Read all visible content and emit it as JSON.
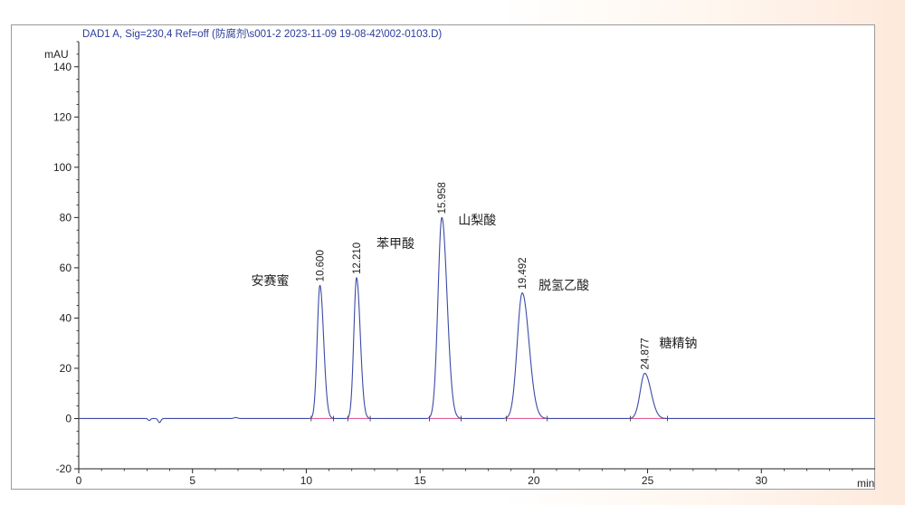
{
  "chart_data": {
    "type": "line",
    "title": "DAD1 A, Sig=230,4 Ref=off (防腐剂\\s001-2 2023-11-09 19-08-42\\002-0103.D)",
    "ylabel": "mAU",
    "xlabel": "min",
    "xlim": [
      0,
      35
    ],
    "ylim": [
      -20,
      150
    ],
    "x_ticks": [
      0,
      5,
      10,
      15,
      20,
      25,
      30
    ],
    "y_ticks": [
      -20,
      0,
      20,
      40,
      60,
      80,
      100,
      120,
      140
    ],
    "grid": false,
    "colors": {
      "signal": "#3b4aa6",
      "baseline": "#e0609a",
      "axis": "#222222"
    },
    "peaks": [
      {
        "rt": 10.6,
        "rt_label": "10.600",
        "height": 53,
        "sigma": 0.12,
        "compound": "安赛蜜"
      },
      {
        "rt": 12.21,
        "rt_label": "12.210",
        "height": 56,
        "sigma": 0.12,
        "compound": "苯甲酸"
      },
      {
        "rt": 15.958,
        "rt_label": "15.958",
        "height": 80,
        "sigma": 0.17,
        "compound": "山梨酸"
      },
      {
        "rt": 19.492,
        "rt_label": "19.492",
        "height": 50,
        "sigma": 0.22,
        "compound": "脱氢乙酸"
      },
      {
        "rt": 24.877,
        "rt_label": "24.877",
        "height": 18,
        "sigma": 0.2,
        "compound": "糖精钠"
      }
    ],
    "disturbances": [
      {
        "t": 3.1,
        "h": -0.8,
        "w": 0.05
      },
      {
        "t": 3.55,
        "h": -1.6,
        "w": 0.06
      },
      {
        "t": 6.9,
        "h": 0.4,
        "w": 0.08
      }
    ]
  }
}
